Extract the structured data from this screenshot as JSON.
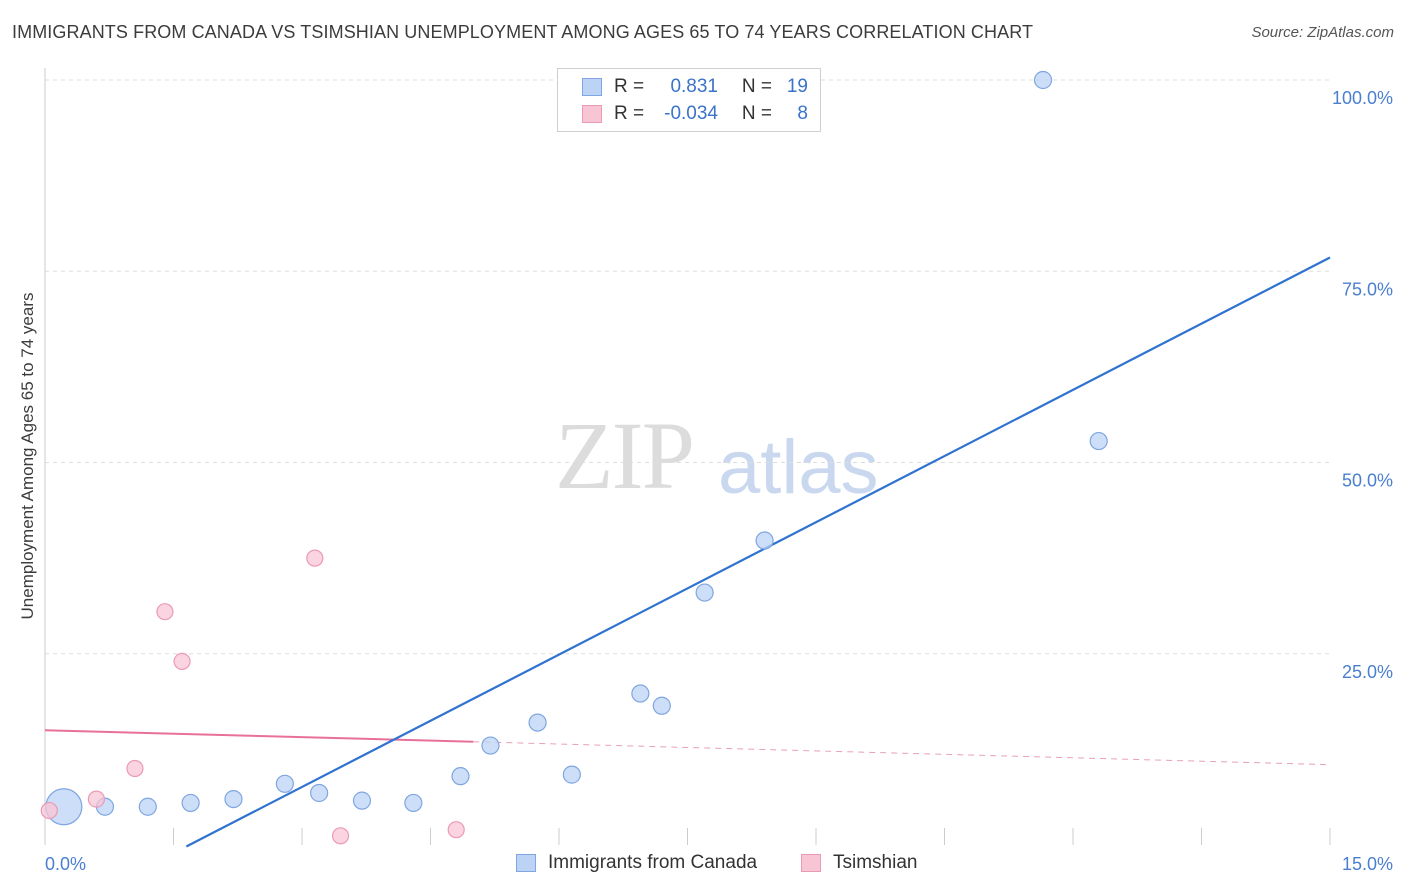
{
  "title": "IMMIGRANTS FROM CANADA VS TSIMSHIAN UNEMPLOYMENT AMONG AGES 65 TO 74 YEARS CORRELATION CHART",
  "source": "Source: ZipAtlas.com",
  "watermark": {
    "zip": "ZIP",
    "atlas": "atlas"
  },
  "colors": {
    "blue": "#4a7fd0",
    "blue_fill": "#bcd3f5",
    "pink": "#e8709a",
    "pink_fill": "#f8c5d5",
    "grid": "#dddddd"
  },
  "legend": {
    "rows": [
      {
        "r_label": "R =",
        "r_value": "0.831",
        "n_label": "N =",
        "n_value": "19"
      },
      {
        "r_label": "R =",
        "r_value": "-0.034",
        "n_label": "N =",
        "n_value": "8"
      }
    ]
  },
  "bottom_legend": {
    "series1": "Immigrants from Canada",
    "series2": "Tsimshian"
  },
  "chart_data": {
    "type": "scatter",
    "title": "IMMIGRANTS FROM CANADA VS TSIMSHIAN UNEMPLOYMENT AMONG AGES 65 TO 74 YEARS CORRELATION CHART",
    "xlabel": "",
    "ylabel": "Unemployment Among Ages 65 to 74 years",
    "xlim": [
      0,
      15
    ],
    "ylim": [
      0,
      100
    ],
    "x_tick_labels": [
      "0.0%",
      "15.0%"
    ],
    "y_ticks": [
      25,
      50,
      75,
      100
    ],
    "y_tick_labels": [
      "25.0%",
      "50.0%",
      "75.0%",
      "100.0%"
    ],
    "series": [
      {
        "name": "Immigrants from Canada",
        "color": "#4a7fd0",
        "points": [
          {
            "x": 0.22,
            "y": 5.0,
            "size": "large"
          },
          {
            "x": 0.7,
            "y": 5.0
          },
          {
            "x": 1.2,
            "y": 5.0
          },
          {
            "x": 1.7,
            "y": 5.5
          },
          {
            "x": 2.2,
            "y": 6.0
          },
          {
            "x": 2.8,
            "y": 8.0
          },
          {
            "x": 3.2,
            "y": 6.8
          },
          {
            "x": 3.7,
            "y": 5.8
          },
          {
            "x": 4.3,
            "y": 5.5
          },
          {
            "x": 4.85,
            "y": 9.0
          },
          {
            "x": 5.2,
            "y": 13.0
          },
          {
            "x": 5.75,
            "y": 16.0
          },
          {
            "x": 6.15,
            "y": 9.2
          },
          {
            "x": 6.95,
            "y": 19.8
          },
          {
            "x": 7.2,
            "y": 18.2
          },
          {
            "x": 7.7,
            "y": 33.0
          },
          {
            "x": 8.4,
            "y": 39.8
          },
          {
            "x": 11.65,
            "y": 100.0
          },
          {
            "x": 12.3,
            "y": 52.8
          }
        ],
        "trendline": {
          "x": [
            1.65,
            15.0
          ],
          "y": [
            -0.2,
            76.8
          ]
        }
      },
      {
        "name": "Tsimshian",
        "color": "#e8709a",
        "points": [
          {
            "x": 0.05,
            "y": 4.5
          },
          {
            "x": 0.6,
            "y": 6.0
          },
          {
            "x": 1.05,
            "y": 10.0
          },
          {
            "x": 1.4,
            "y": 30.5
          },
          {
            "x": 1.6,
            "y": 24.0
          },
          {
            "x": 3.15,
            "y": 37.5
          },
          {
            "x": 3.45,
            "y": 1.2
          },
          {
            "x": 4.8,
            "y": 2.0
          }
        ],
        "trendline": {
          "x": [
            0.0,
            5.0
          ],
          "y": [
            15.0,
            13.5
          ]
        },
        "trendline_dashed": {
          "x": [
            5.0,
            15.0
          ],
          "y": [
            13.5,
            10.5
          ]
        }
      }
    ]
  }
}
